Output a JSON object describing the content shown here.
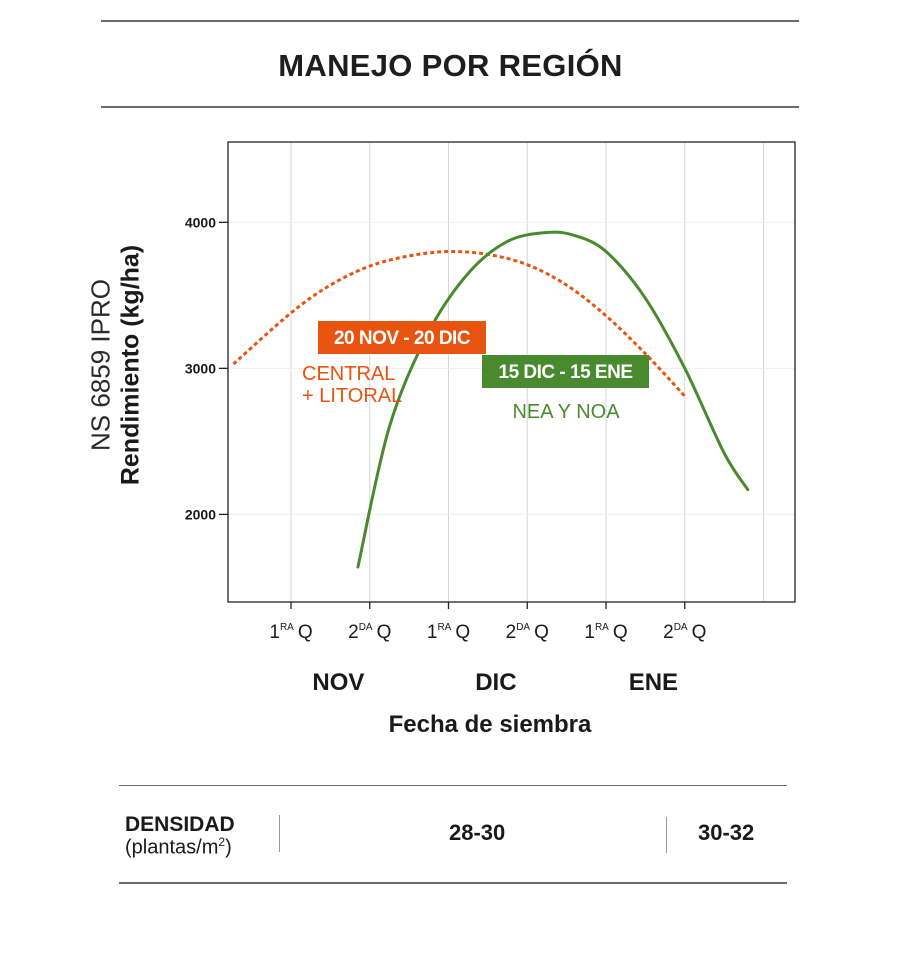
{
  "title": "MANEJO POR REGIÓN",
  "y_axis_label": {
    "line1": "NS 6859 IPRO",
    "line2": "Rendimiento (kg/ha)"
  },
  "colors": {
    "orange": "#e8540f",
    "green": "#4a8a2f",
    "axis": "#222222",
    "grid": "#d6d6d6"
  },
  "chart_data": {
    "type": "line",
    "title": "MANEJO POR REGIÓN",
    "xlabel": "Fecha de siembra",
    "ylabel": "Rendimiento (kg/ha)",
    "x_unit": "quincenas (0 = 1ra Q Nov)",
    "xlim": [
      -0.8,
      6.4
    ],
    "ylim": [
      1400,
      4550
    ],
    "y_ticks": [
      2000,
      3000,
      4000
    ],
    "y_tick_labels": [
      "2000",
      "3000",
      "4000"
    ],
    "x_ticks": [
      0,
      1,
      2,
      3,
      4,
      5
    ],
    "x_tick_labels": [
      {
        "num": "1",
        "sup": "RA",
        "q": "Q"
      },
      {
        "num": "2",
        "sup": "DA",
        "q": "Q"
      },
      {
        "num": "1",
        "sup": "RA",
        "q": "Q"
      },
      {
        "num": "2",
        "sup": "DA",
        "q": "Q"
      },
      {
        "num": "1",
        "sup": "RA",
        "q": "Q"
      },
      {
        "num": "2",
        "sup": "DA",
        "q": "Q"
      }
    ],
    "month_labels": [
      {
        "label": "NOV",
        "x": 0.5
      },
      {
        "label": "DIC",
        "x": 2.5
      },
      {
        "label": "ENE",
        "x": 4.5
      }
    ],
    "grid": true,
    "series": [
      {
        "name": "Central + Litoral",
        "style": "dashed",
        "color": "#e8540f",
        "x": [
          -0.73,
          0.0,
          0.5,
          1.0,
          1.5,
          2.0,
          2.5,
          3.0,
          3.5,
          4.0,
          4.5,
          5.0
        ],
        "y": [
          3030,
          3380,
          3570,
          3700,
          3770,
          3800,
          3780,
          3710,
          3570,
          3360,
          3100,
          2810
        ]
      },
      {
        "name": "NEA y NOA",
        "style": "solid",
        "color": "#4a8a2f",
        "x": [
          0.85,
          1.25,
          1.75,
          2.25,
          2.75,
          3.25,
          3.6,
          4.0,
          4.5,
          5.0,
          5.5,
          5.8
        ],
        "y": [
          1640,
          2600,
          3250,
          3650,
          3870,
          3930,
          3910,
          3800,
          3480,
          3000,
          2420,
          2170
        ]
      }
    ],
    "annotations": [
      {
        "badge": "20 NOV - 20 DIC",
        "label_lines": [
          "CENTRAL",
          "+ LITORAL"
        ],
        "series": "Central + Litoral"
      },
      {
        "badge": "15 DIC - 15 ENE",
        "label_lines": [
          "NEA Y NOA"
        ],
        "series": "NEA y NOA"
      }
    ]
  },
  "footer": {
    "density_label": "DENSIDAD",
    "density_unit_pre": "(plantas/m",
    "density_unit_sup": "2",
    "density_unit_post": ")",
    "value_1": "28-30",
    "value_2": "30-32"
  }
}
